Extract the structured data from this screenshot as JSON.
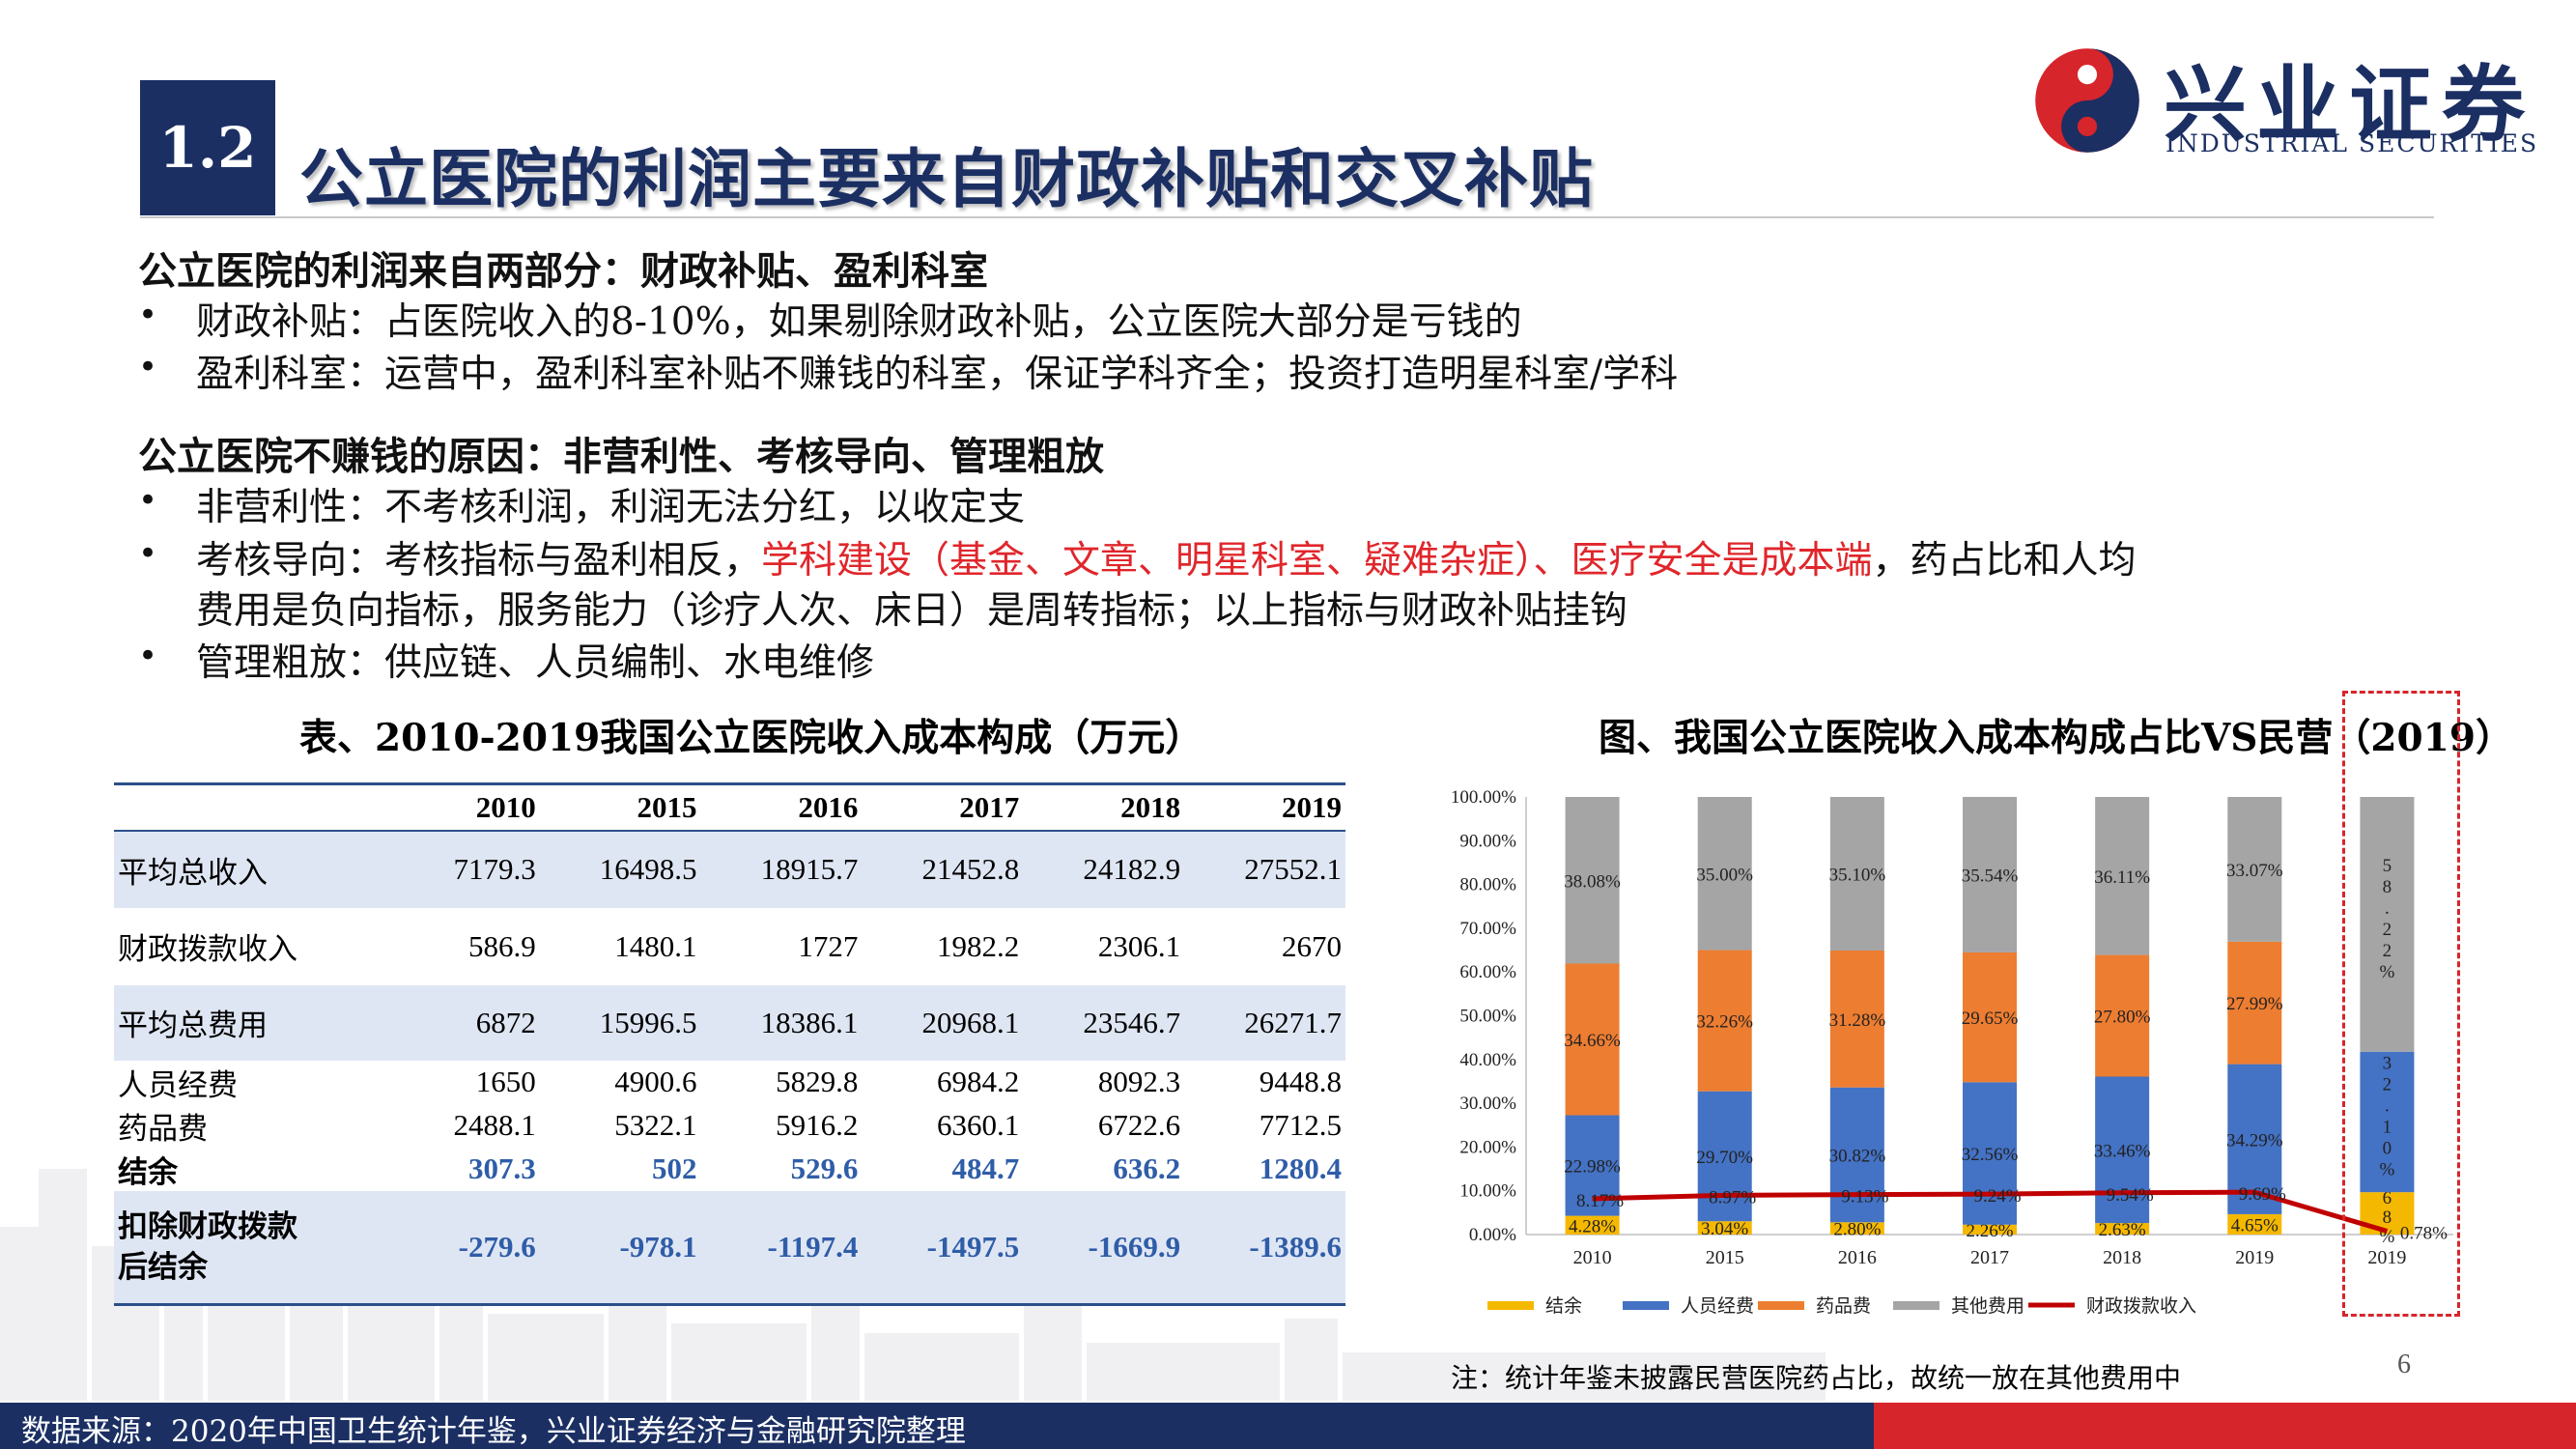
{
  "header": {
    "section_number": "1.2",
    "title": "公立医院的利润主要来自财政补贴和交叉补贴",
    "logo_cn": "兴业证券",
    "logo_en": "INDUSTRIAL SECURITIES"
  },
  "content": {
    "heading1": "公立医院的利润来自两部分：财政补贴、盈利科室",
    "bullets1": [
      "财政补贴：占医院收入的8-10%，如果剔除财政补贴，公立医院大部分是亏钱的",
      "盈利科室：运营中，盈利科室补贴不赚钱的科室，保证学科齐全；投资打造明星科室/学科"
    ],
    "heading2": "公立医院不赚钱的原因：非营利性、考核导向、管理粗放",
    "bullet2_1": "非营利性：不考核利润，利润无法分红，以收定支",
    "bullet2_2_pre": "考核导向：考核指标与盈利相反，",
    "bullet2_2_red": "学科建设（基金、文章、明星科室、疑难杂症）、医疗安全是成本端",
    "bullet2_2_post": "，药占比和人均",
    "bullet2_2_line2": "费用是负向指标，服务能力（诊疗人次、床日）是周转指标；以上指标与财政补贴挂钩",
    "bullet2_3": "管理粗放：供应链、人员编制、水电维修",
    "bullet_symbol": "•"
  },
  "table": {
    "caption": "表、2010-2019我国公立医院收入成本构成（万元）",
    "columns": [
      "",
      "2010",
      "2015",
      "2016",
      "2017",
      "2018",
      "2019"
    ],
    "rows": [
      {
        "label": "平均总收入",
        "values": [
          "7179.3",
          "16498.5",
          "18915.7",
          "21452.8",
          "24182.9",
          "27552.1"
        ]
      },
      {
        "label": "财政拨款收入",
        "values": [
          "586.9",
          "1480.1",
          "1727",
          "1982.2",
          "2306.1",
          "2670"
        ]
      },
      {
        "label": "平均总费用",
        "values": [
          "6872",
          "15996.5",
          "18386.1",
          "20968.1",
          "23546.7",
          "26271.7"
        ]
      },
      {
        "label": "人员经费",
        "values": [
          "1650",
          "4900.6",
          "5829.8",
          "6984.2",
          "8092.3",
          "9448.8"
        ]
      },
      {
        "label": "药品费",
        "values": [
          "2488.1",
          "5322.1",
          "5916.2",
          "6360.1",
          "6722.6",
          "7712.5"
        ]
      },
      {
        "label": "结余",
        "values": [
          "307.3",
          "502",
          "529.6",
          "484.7",
          "636.2",
          "1280.4"
        ]
      },
      {
        "label": "扣除财政拨款后结余",
        "label_l1": "扣除财政拨款",
        "label_l2": "后结余",
        "values": [
          "-279.6",
          "-978.1",
          "-1197.4",
          "-1497.5",
          "-1669.9",
          "-1389.6"
        ]
      }
    ]
  },
  "chart_data": {
    "type": "bar",
    "stacked": true,
    "title": "图、我国公立医院收入成本构成占比VS民营（2019）",
    "categories": [
      "2010",
      "2015",
      "2016",
      "2017",
      "2018",
      "2019",
      "2019"
    ],
    "ylim": [
      0,
      100
    ],
    "yticks": [
      "0.00%",
      "10.00%",
      "20.00%",
      "30.00%",
      "40.00%",
      "50.00%",
      "60.00%",
      "70.00%",
      "80.00%",
      "90.00%",
      "100.00%"
    ],
    "series": [
      {
        "name": "结余",
        "color": "#f5b800",
        "values": [
          4.28,
          3.04,
          2.8,
          2.26,
          2.63,
          4.65,
          9.68
        ],
        "labels": [
          "4.28%",
          "3.04%",
          "2.80%",
          "2.26%",
          "2.63%",
          "4.65%",
          "9.68%"
        ]
      },
      {
        "name": "人员经费",
        "color": "#4472c4",
        "values": [
          22.98,
          29.7,
          30.82,
          32.56,
          33.46,
          34.29,
          32.1
        ],
        "labels": [
          "22.98%",
          "29.70%",
          "30.82%",
          "32.56%",
          "33.46%",
          "34.29%",
          "32.10%"
        ]
      },
      {
        "name": "药品费",
        "color": "#ed7d31",
        "values": [
          34.66,
          32.26,
          31.28,
          29.65,
          27.8,
          27.99,
          0
        ],
        "labels": [
          "34.66%",
          "32.26%",
          "31.28%",
          "29.65%",
          "27.80%",
          "27.99%",
          ""
        ]
      },
      {
        "name": "其他费用",
        "color": "#a5a5a5",
        "values": [
          38.08,
          35.0,
          35.1,
          35.54,
          36.11,
          33.07,
          58.22
        ],
        "labels": [
          "38.08%",
          "35.00%",
          "35.10%",
          "35.54%",
          "36.11%",
          "33.07%",
          "58.22%"
        ]
      }
    ],
    "line": {
      "name": "财政拨款收入",
      "color": "#c00000",
      "values": [
        8.17,
        8.97,
        9.13,
        9.24,
        9.54,
        9.69,
        0.78
      ],
      "labels": [
        "8.17%",
        "8.97%",
        "9.13%",
        "9.24%",
        "9.54%",
        "9.69%",
        "0.78%"
      ]
    },
    "legend_position": "bottom"
  },
  "note": "注：统计年鉴未披露民营医院药占比，故统一放在其他费用中",
  "page_number": "6",
  "footer": {
    "source": "数据来源：2020年中国卫生统计年鉴，兴业证券经济与金融研究院整理"
  }
}
